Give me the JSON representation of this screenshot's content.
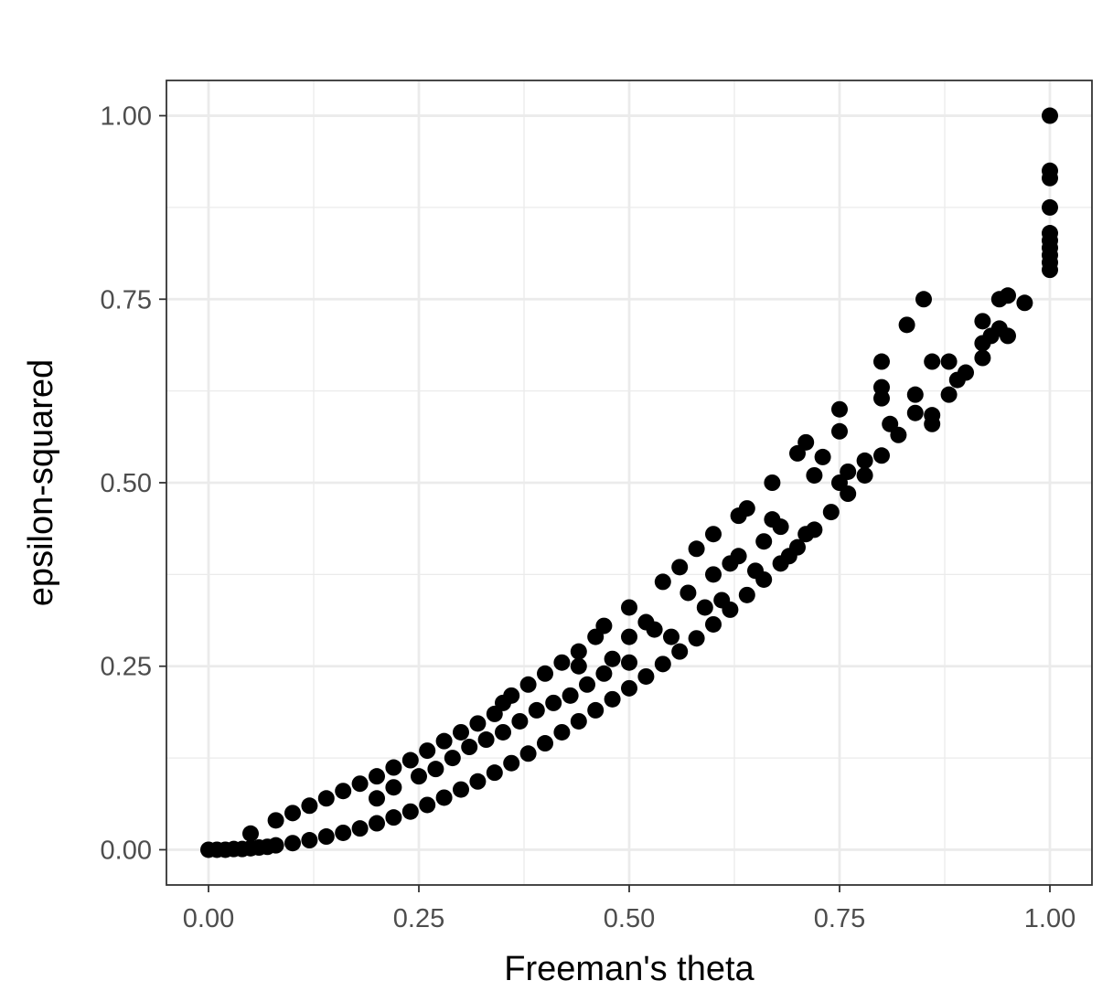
{
  "chart_data": {
    "type": "scatter",
    "xlabel": "Freeman's theta",
    "ylabel": "epsilon-squared",
    "xlim": [
      -0.05,
      1.05
    ],
    "ylim": [
      -0.048,
      1.048
    ],
    "x_ticks": [
      "0.00",
      "0.25",
      "0.50",
      "0.75",
      "1.00"
    ],
    "y_ticks": [
      "0.00",
      "0.25",
      "0.50",
      "0.75",
      "1.00"
    ],
    "grid": true,
    "legend": "none",
    "point_color": "#000000",
    "series": [
      {
        "points": [
          [
            0.0,
            0.0
          ],
          [
            0.01,
            0.0
          ],
          [
            0.02,
            0.0
          ],
          [
            0.03,
            0.001
          ],
          [
            0.04,
            0.001
          ],
          [
            0.05,
            0.002
          ],
          [
            0.05,
            0.022
          ],
          [
            0.06,
            0.003
          ],
          [
            0.07,
            0.004
          ],
          [
            0.08,
            0.006
          ],
          [
            0.08,
            0.04
          ],
          [
            0.1,
            0.009
          ],
          [
            0.1,
            0.05
          ],
          [
            0.12,
            0.013
          ],
          [
            0.12,
            0.06
          ],
          [
            0.14,
            0.018
          ],
          [
            0.14,
            0.07
          ],
          [
            0.16,
            0.023
          ],
          [
            0.16,
            0.08
          ],
          [
            0.18,
            0.029
          ],
          [
            0.18,
            0.09
          ],
          [
            0.2,
            0.036
          ],
          [
            0.2,
            0.1
          ],
          [
            0.2,
            0.07
          ],
          [
            0.22,
            0.044
          ],
          [
            0.22,
            0.112
          ],
          [
            0.22,
            0.085
          ],
          [
            0.24,
            0.052
          ],
          [
            0.24,
            0.122
          ],
          [
            0.25,
            0.1
          ],
          [
            0.26,
            0.061
          ],
          [
            0.26,
            0.135
          ],
          [
            0.27,
            0.11
          ],
          [
            0.28,
            0.071
          ],
          [
            0.28,
            0.148
          ],
          [
            0.29,
            0.125
          ],
          [
            0.3,
            0.082
          ],
          [
            0.3,
            0.16
          ],
          [
            0.31,
            0.14
          ],
          [
            0.32,
            0.093
          ],
          [
            0.32,
            0.172
          ],
          [
            0.33,
            0.15
          ],
          [
            0.34,
            0.105
          ],
          [
            0.34,
            0.185
          ],
          [
            0.35,
            0.2
          ],
          [
            0.35,
            0.16
          ],
          [
            0.36,
            0.118
          ],
          [
            0.36,
            0.21
          ],
          [
            0.37,
            0.175
          ],
          [
            0.38,
            0.131
          ],
          [
            0.38,
            0.225
          ],
          [
            0.39,
            0.19
          ],
          [
            0.4,
            0.145
          ],
          [
            0.4,
            0.24
          ],
          [
            0.41,
            0.2
          ],
          [
            0.42,
            0.16
          ],
          [
            0.42,
            0.255
          ],
          [
            0.43,
            0.21
          ],
          [
            0.44,
            0.175
          ],
          [
            0.44,
            0.27
          ],
          [
            0.44,
            0.25
          ],
          [
            0.45,
            0.225
          ],
          [
            0.46,
            0.19
          ],
          [
            0.46,
            0.29
          ],
          [
            0.47,
            0.305
          ],
          [
            0.47,
            0.24
          ],
          [
            0.48,
            0.205
          ],
          [
            0.48,
            0.26
          ],
          [
            0.5,
            0.22
          ],
          [
            0.5,
            0.33
          ],
          [
            0.5,
            0.29
          ],
          [
            0.5,
            0.255
          ],
          [
            0.52,
            0.236
          ],
          [
            0.52,
            0.31
          ],
          [
            0.53,
            0.3
          ],
          [
            0.54,
            0.253
          ],
          [
            0.54,
            0.365
          ],
          [
            0.55,
            0.29
          ],
          [
            0.56,
            0.27
          ],
          [
            0.56,
            0.385
          ],
          [
            0.57,
            0.35
          ],
          [
            0.58,
            0.288
          ],
          [
            0.58,
            0.41
          ],
          [
            0.59,
            0.33
          ],
          [
            0.6,
            0.307
          ],
          [
            0.6,
            0.43
          ],
          [
            0.6,
            0.375
          ],
          [
            0.61,
            0.34
          ],
          [
            0.62,
            0.327
          ],
          [
            0.62,
            0.39
          ],
          [
            0.63,
            0.455
          ],
          [
            0.63,
            0.4
          ],
          [
            0.64,
            0.347
          ],
          [
            0.64,
            0.465
          ],
          [
            0.65,
            0.38
          ],
          [
            0.66,
            0.368
          ],
          [
            0.66,
            0.42
          ],
          [
            0.67,
            0.5
          ],
          [
            0.67,
            0.45
          ],
          [
            0.68,
            0.39
          ],
          [
            0.68,
            0.44
          ],
          [
            0.69,
            0.4
          ],
          [
            0.7,
            0.412
          ],
          [
            0.7,
            0.54
          ],
          [
            0.71,
            0.43
          ],
          [
            0.71,
            0.555
          ],
          [
            0.72,
            0.436
          ],
          [
            0.72,
            0.51
          ],
          [
            0.73,
            0.535
          ],
          [
            0.74,
            0.46
          ],
          [
            0.75,
            0.6
          ],
          [
            0.75,
            0.57
          ],
          [
            0.75,
            0.5
          ],
          [
            0.76,
            0.485
          ],
          [
            0.76,
            0.515
          ],
          [
            0.78,
            0.51
          ],
          [
            0.78,
            0.53
          ],
          [
            0.8,
            0.537
          ],
          [
            0.8,
            0.665
          ],
          [
            0.8,
            0.63
          ],
          [
            0.8,
            0.615
          ],
          [
            0.81,
            0.58
          ],
          [
            0.82,
            0.565
          ],
          [
            0.83,
            0.715
          ],
          [
            0.84,
            0.62
          ],
          [
            0.84,
            0.595
          ],
          [
            0.85,
            0.75
          ],
          [
            0.86,
            0.592
          ],
          [
            0.86,
            0.665
          ],
          [
            0.86,
            0.58
          ],
          [
            0.88,
            0.62
          ],
          [
            0.88,
            0.665
          ],
          [
            0.89,
            0.64
          ],
          [
            0.9,
            0.65
          ],
          [
            0.92,
            0.69
          ],
          [
            0.92,
            0.72
          ],
          [
            0.92,
            0.67
          ],
          [
            0.93,
            0.7
          ],
          [
            0.94,
            0.75
          ],
          [
            0.94,
            0.71
          ],
          [
            0.95,
            0.755
          ],
          [
            0.95,
            0.7
          ],
          [
            0.97,
            0.745
          ],
          [
            1.0,
            0.79
          ],
          [
            1.0,
            0.8
          ],
          [
            1.0,
            0.81
          ],
          [
            1.0,
            0.82
          ],
          [
            1.0,
            0.83
          ],
          [
            1.0,
            0.84
          ],
          [
            1.0,
            0.875
          ],
          [
            1.0,
            0.915
          ],
          [
            1.0,
            0.925
          ],
          [
            1.0,
            1.0
          ]
        ]
      }
    ]
  }
}
